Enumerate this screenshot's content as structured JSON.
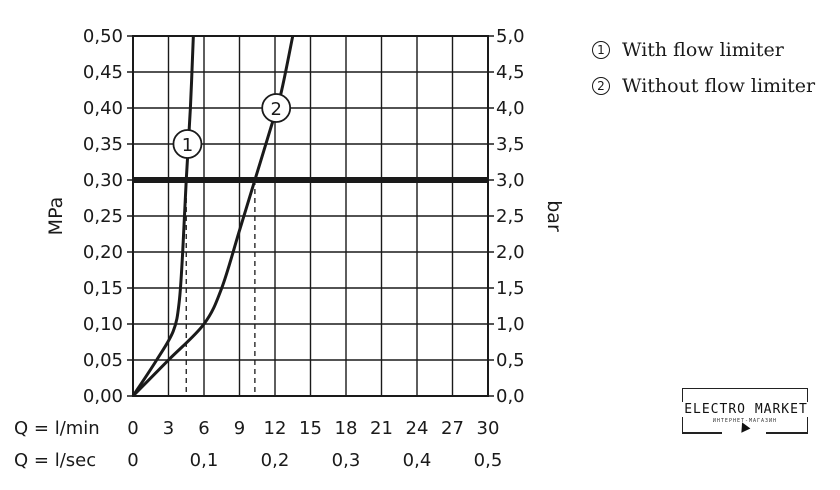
{
  "chart_data": {
    "type": "line",
    "xlabel_min_prefix": "Q = l/min",
    "xlabel_sec_prefix": "Q = l/sec",
    "ylabel_left": "MPa",
    "ylabel_right": "bar",
    "xlim": [
      0,
      30
    ],
    "ylim": [
      0,
      0.5
    ],
    "grid": true,
    "x_ticks_min": [
      "0",
      "3",
      "6",
      "9",
      "12",
      "15",
      "18",
      "21",
      "24",
      "27",
      "30"
    ],
    "x_ticks_sec": [
      {
        "x": 0,
        "label": "0"
      },
      {
        "x": 6,
        "label": "0,1"
      },
      {
        "x": 12,
        "label": "0,2"
      },
      {
        "x": 18,
        "label": "0,3"
      },
      {
        "x": 24,
        "label": "0,4"
      },
      {
        "x": 30,
        "label": "0,5"
      }
    ],
    "y_ticks_left": [
      "0,00",
      "0,05",
      "0,10",
      "0,15",
      "0,20",
      "0,25",
      "0,30",
      "0,35",
      "0,40",
      "0,45",
      "0,50"
    ],
    "y_ticks_right": [
      "0,0",
      "0,5",
      "1,0",
      "1,5",
      "2,0",
      "2,5",
      "3,0",
      "3,5",
      "4,0",
      "4,5",
      "5,0"
    ],
    "reference_line": {
      "y": 0.3
    },
    "drop_lines": [
      {
        "x": 4.5,
        "y": 0.3
      },
      {
        "x": 10.3,
        "y": 0.3
      }
    ],
    "series": [
      {
        "name": "With flow limiter",
        "marker": "1",
        "label_at": {
          "x": 4.6,
          "y": 0.35
        },
        "points": [
          [
            0,
            0
          ],
          [
            2,
            0.05
          ],
          [
            3.4,
            0.09
          ],
          [
            3.9,
            0.13
          ],
          [
            4.2,
            0.2
          ],
          [
            4.5,
            0.3
          ],
          [
            4.85,
            0.4
          ],
          [
            5.1,
            0.5
          ]
        ]
      },
      {
        "name": "Without flow limiter",
        "marker": "2",
        "label_at": {
          "x": 12.1,
          "y": 0.4
        },
        "points": [
          [
            0,
            0
          ],
          [
            3,
            0.05
          ],
          [
            6,
            0.1
          ],
          [
            7.5,
            0.15
          ],
          [
            9,
            0.23
          ],
          [
            10.3,
            0.3
          ],
          [
            11.6,
            0.37
          ],
          [
            12.5,
            0.42
          ],
          [
            13.5,
            0.5
          ]
        ]
      }
    ]
  },
  "legend": {
    "items": [
      {
        "num": "1",
        "label": "With flow limiter"
      },
      {
        "num": "2",
        "label": "Without flow limiter"
      }
    ]
  },
  "logo": {
    "title": "ELECTRO MARKET",
    "subtitle": "ИНТЕРНЕТ-МАГАЗИН"
  }
}
